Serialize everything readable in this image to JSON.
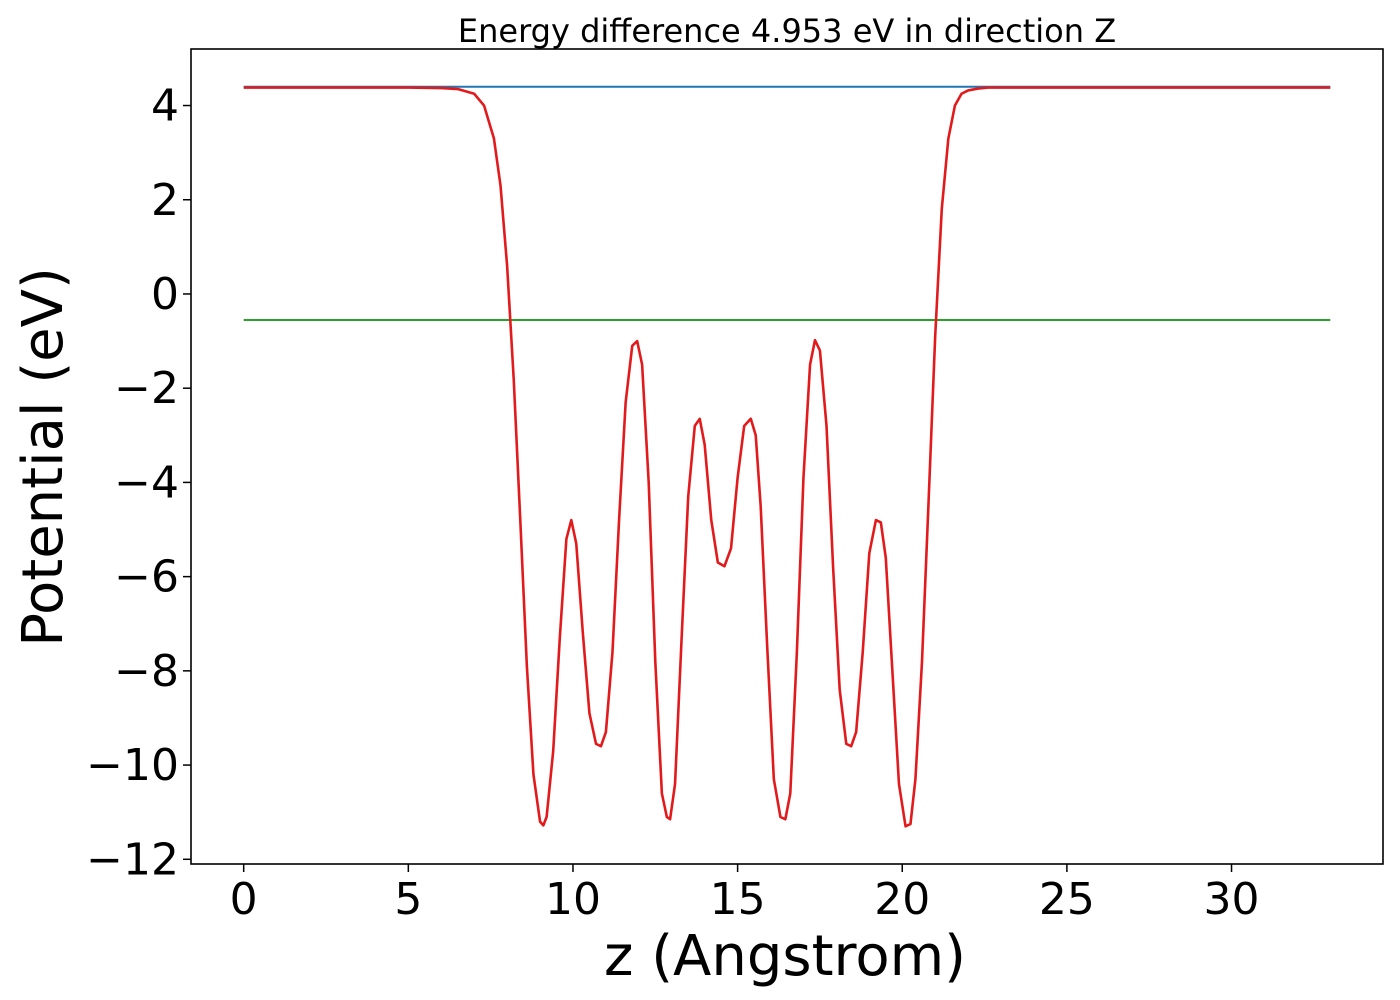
{
  "chart_data": {
    "type": "line",
    "title": "Energy difference 4.953 eV in direction Z",
    "xlabel": "z (Angstrom)",
    "ylabel": "Potential (eV)",
    "xlim": [
      -1.6,
      34.6
    ],
    "ylim": [
      -12.1,
      5.2
    ],
    "xticks": [
      0,
      5,
      10,
      15,
      20,
      25,
      30
    ],
    "xtick_labels": [
      "0",
      "5",
      "10",
      "15",
      "20",
      "25",
      "30"
    ],
    "yticks": [
      4,
      2,
      0,
      -2,
      -4,
      -6,
      -8,
      -10,
      -12
    ],
    "ytick_labels": [
      "4",
      "2",
      "0",
      "−2",
      "−4",
      "−6",
      "−8",
      "−10",
      "−12"
    ],
    "grid": false,
    "series": [
      {
        "color": "#1f77b4",
        "x": [
          0,
          33
        ],
        "y": [
          4.4,
          4.4
        ]
      },
      {
        "color": "#2ca02c",
        "x": [
          0,
          33
        ],
        "y": [
          -0.553,
          -0.553
        ]
      },
      {
        "color": "#e31a1c",
        "x": [
          0,
          2,
          4,
          5,
          6,
          6.5,
          7,
          7.3,
          7.6,
          7.8,
          8.0,
          8.2,
          8.4,
          8.6,
          8.8,
          9.0,
          9.1,
          9.2,
          9.4,
          9.6,
          9.8,
          9.95,
          10.1,
          10.3,
          10.5,
          10.7,
          10.85,
          11.0,
          11.2,
          11.4,
          11.6,
          11.8,
          11.95,
          12.1,
          12.3,
          12.5,
          12.7,
          12.85,
          12.95,
          13.1,
          13.3,
          13.5,
          13.7,
          13.85,
          14.0,
          14.2,
          14.4,
          14.6,
          14.8,
          15.0,
          15.2,
          15.4,
          15.55,
          15.7,
          15.9,
          16.1,
          16.3,
          16.45,
          16.6,
          16.8,
          17.0,
          17.2,
          17.35,
          17.5,
          17.7,
          17.9,
          18.1,
          18.3,
          18.45,
          18.6,
          18.8,
          19.0,
          19.2,
          19.35,
          19.5,
          19.7,
          19.9,
          20.1,
          20.25,
          20.4,
          20.6,
          20.8,
          21.0,
          21.2,
          21.4,
          21.6,
          21.8,
          22.0,
          22.3,
          22.6,
          23,
          24,
          26,
          28,
          30,
          33
        ],
        "y": [
          4.38,
          4.38,
          4.38,
          4.38,
          4.37,
          4.35,
          4.25,
          4.0,
          3.3,
          2.3,
          0.6,
          -1.8,
          -4.8,
          -7.9,
          -10.2,
          -11.2,
          -11.28,
          -11.1,
          -9.7,
          -7.3,
          -5.2,
          -4.8,
          -5.3,
          -7.2,
          -8.9,
          -9.55,
          -9.6,
          -9.3,
          -7.6,
          -4.8,
          -2.3,
          -1.1,
          -1.0,
          -1.5,
          -4.0,
          -7.8,
          -10.6,
          -11.1,
          -11.15,
          -10.4,
          -7.3,
          -4.3,
          -2.8,
          -2.65,
          -3.2,
          -4.8,
          -5.7,
          -5.78,
          -5.4,
          -3.9,
          -2.8,
          -2.65,
          -3.0,
          -4.5,
          -7.5,
          -10.3,
          -11.1,
          -11.15,
          -10.6,
          -7.6,
          -3.9,
          -1.5,
          -0.98,
          -1.2,
          -2.8,
          -5.8,
          -8.4,
          -9.55,
          -9.6,
          -9.3,
          -7.6,
          -5.5,
          -4.8,
          -4.85,
          -5.6,
          -8.0,
          -10.4,
          -11.3,
          -11.25,
          -10.3,
          -7.8,
          -4.4,
          -0.9,
          1.8,
          3.3,
          4.0,
          4.25,
          4.32,
          4.36,
          4.38,
          4.38,
          4.38,
          4.38,
          4.38,
          4.38,
          4.38
        ]
      }
    ]
  }
}
